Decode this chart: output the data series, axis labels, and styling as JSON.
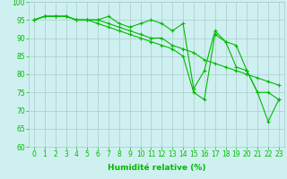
{
  "x": [
    0,
    1,
    2,
    3,
    4,
    5,
    6,
    7,
    8,
    9,
    10,
    11,
    12,
    13,
    14,
    15,
    16,
    17,
    18,
    19,
    20,
    21,
    22,
    23
  ],
  "line1": [
    95,
    96,
    96,
    96,
    95,
    95,
    95,
    96,
    94,
    93,
    94,
    95,
    94,
    92,
    94,
    76,
    81,
    92,
    89,
    82,
    81,
    75,
    75,
    73
  ],
  "line2": [
    95,
    96,
    96,
    96,
    95,
    95,
    95,
    94,
    93,
    92,
    91,
    90,
    90,
    88,
    87,
    86,
    84,
    83,
    82,
    81,
    80,
    79,
    78,
    77
  ],
  "line3": [
    95,
    96,
    96,
    96,
    95,
    95,
    94,
    93,
    92,
    91,
    90,
    89,
    88,
    87,
    85,
    75,
    73,
    91,
    89,
    88,
    81,
    75,
    67,
    73
  ],
  "line_color": "#00bb00",
  "bg_color": "#cff0f0",
  "grid_color": "#aacccc",
  "xlabel": "Humidité relative (%)",
  "ylim": [
    60,
    100
  ],
  "xlim_min": -0.5,
  "xlim_max": 23.5,
  "yticks": [
    60,
    65,
    70,
    75,
    80,
    85,
    90,
    95,
    100
  ],
  "xticks": [
    0,
    1,
    2,
    3,
    4,
    5,
    6,
    7,
    8,
    9,
    10,
    11,
    12,
    13,
    14,
    15,
    16,
    17,
    18,
    19,
    20,
    21,
    22,
    23
  ],
  "xlabel_fontsize": 6.5,
  "tick_fontsize": 5.5,
  "marker": "+",
  "markersize": 3,
  "linewidth": 0.8
}
